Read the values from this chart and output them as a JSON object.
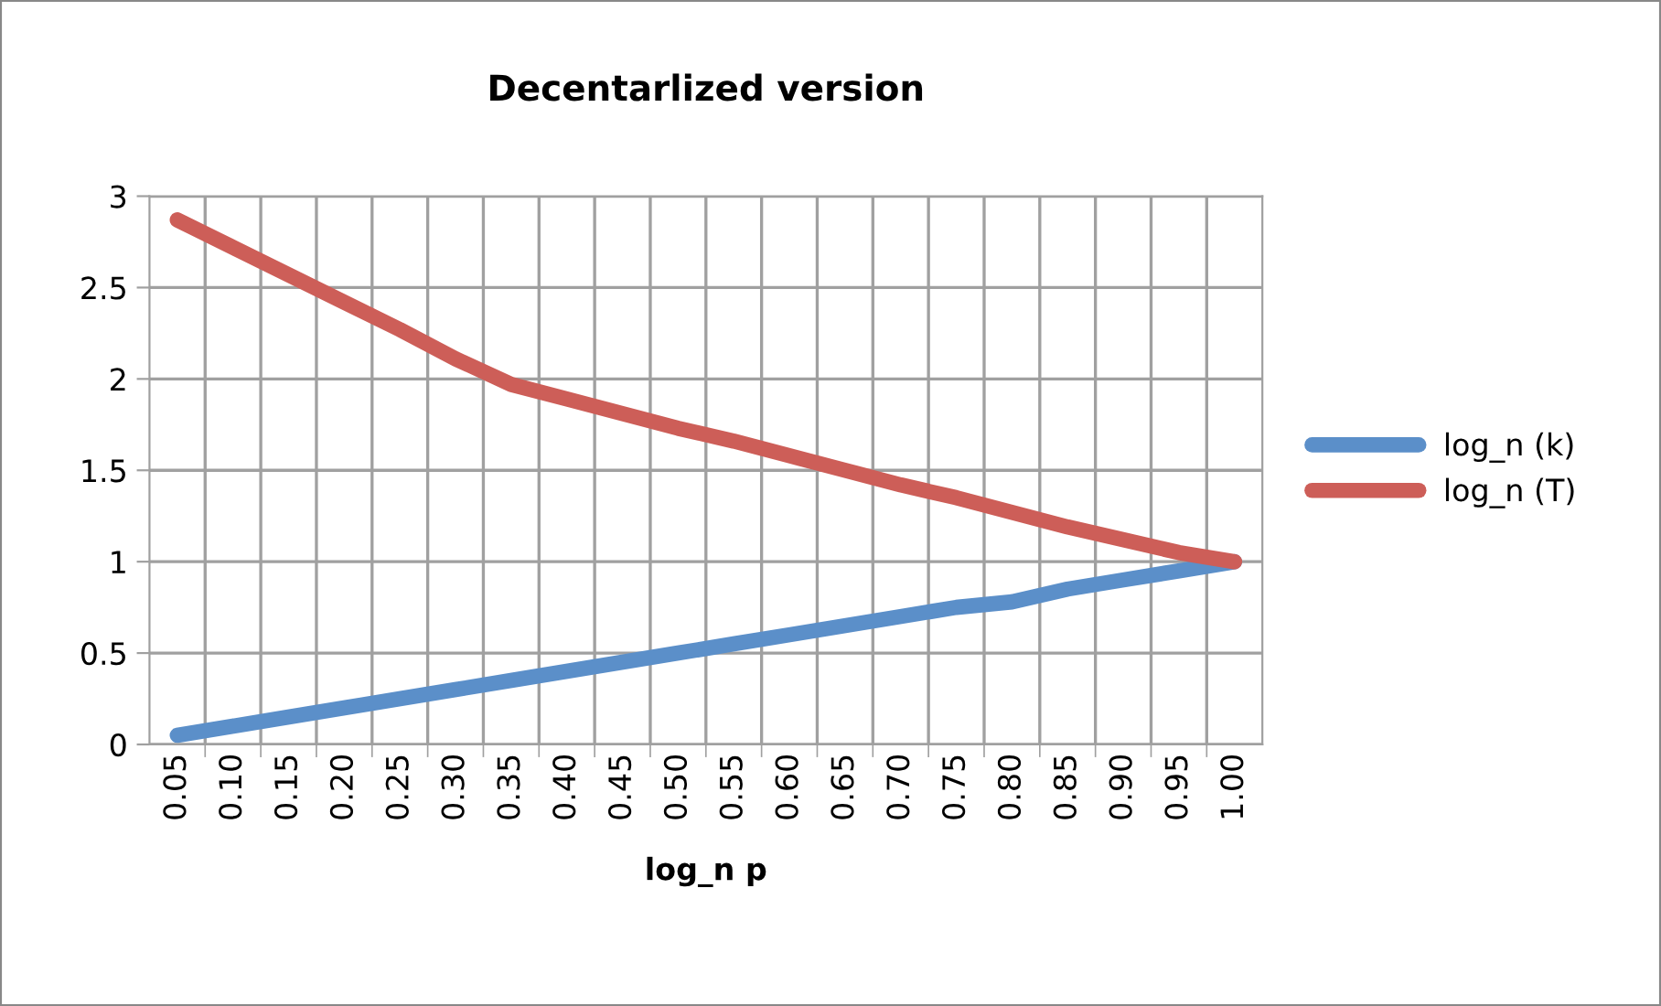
{
  "chart_data": {
    "type": "line",
    "title": "Decentarlized version",
    "xlabel": "log_n p",
    "categories": [
      "0.05",
      "0.10",
      "0.15",
      "0.20",
      "0.25",
      "0.30",
      "0.35",
      "0.40",
      "0.45",
      "0.50",
      "0.55",
      "0.60",
      "0.65",
      "0.70",
      "0.75",
      "0.80",
      "0.85",
      "0.90",
      "0.95",
      "1.00"
    ],
    "series": [
      {
        "name": "log_n (k)",
        "color": "#5b8fc9",
        "values": [
          0.05,
          0.1,
          0.15,
          0.2,
          0.25,
          0.3,
          0.35,
          0.4,
          0.45,
          0.5,
          0.55,
          0.6,
          0.65,
          0.7,
          0.75,
          0.78,
          0.85,
          0.9,
          0.95,
          1.0
        ]
      },
      {
        "name": "log_n (T)",
        "color": "#cd5e58",
        "values": [
          2.87,
          2.72,
          2.57,
          2.42,
          2.27,
          2.11,
          1.97,
          1.89,
          1.81,
          1.73,
          1.66,
          1.58,
          1.5,
          1.42,
          1.35,
          1.27,
          1.19,
          1.12,
          1.05,
          1.0
        ]
      }
    ],
    "ylim": [
      0,
      3
    ],
    "yticks": [
      0,
      0.5,
      1,
      1.5,
      2,
      2.5,
      3
    ],
    "grid": true,
    "legend": "right",
    "marker": "none",
    "line_style": "solid"
  }
}
